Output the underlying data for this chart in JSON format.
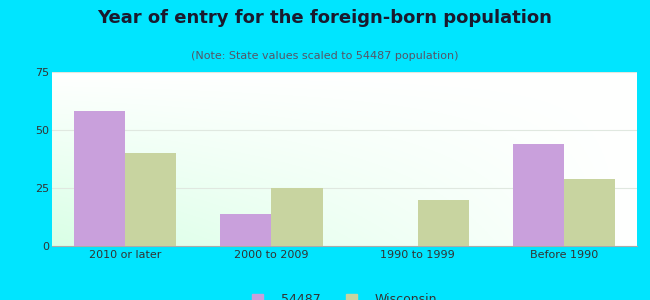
{
  "title": "Year of entry for the foreign-born population",
  "subtitle": "(Note: State values scaled to 54487 population)",
  "categories": [
    "2010 or later",
    "2000 to 2009",
    "1990 to 1999",
    "Before 1990"
  ],
  "values_54487": [
    58,
    14,
    0,
    44
  ],
  "values_wisconsin": [
    40,
    25,
    20,
    29
  ],
  "color_54487": "#c9a0dc",
  "color_wisconsin": "#c8d4a0",
  "background_outer": "#00e5ff",
  "ylim": [
    0,
    75
  ],
  "yticks": [
    0,
    25,
    50,
    75
  ],
  "bar_width": 0.35,
  "legend_label_54487": "54487",
  "legend_label_wisconsin": "Wisconsin",
  "title_fontsize": 13,
  "subtitle_fontsize": 8,
  "tick_fontsize": 8,
  "legend_fontsize": 9,
  "grid_color": "#e0e8e0",
  "spine_color": "#aaaaaa"
}
